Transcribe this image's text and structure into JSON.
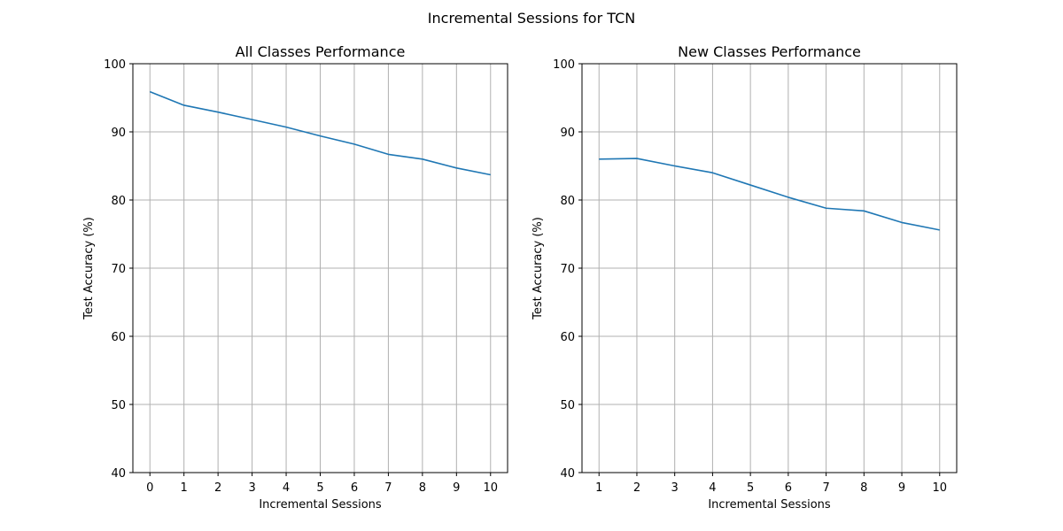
{
  "figure": {
    "suptitle": "Incremental Sessions for TCN"
  },
  "chart_data": [
    {
      "type": "line",
      "title": "All Classes Performance",
      "xlabel": "Incremental Sessions",
      "ylabel": "Test Accuracy (%)",
      "x": [
        0,
        1,
        2,
        3,
        4,
        5,
        6,
        7,
        8,
        9,
        10
      ],
      "series": [
        {
          "values": [
            95.9,
            93.9,
            92.9,
            91.8,
            90.7,
            89.4,
            88.2,
            86.7,
            86.0,
            84.7,
            83.7
          ],
          "color": "#1f77b4"
        }
      ],
      "xticks": [
        0,
        1,
        2,
        3,
        4,
        5,
        6,
        7,
        8,
        9,
        10
      ],
      "yticks": [
        40,
        50,
        60,
        70,
        80,
        90,
        100
      ],
      "xlim": [
        -0.5,
        10.5
      ],
      "ylim": [
        40,
        100
      ],
      "grid": true
    },
    {
      "type": "line",
      "title": "New Classes Performance",
      "xlabel": "Incremental Sessions",
      "ylabel": "Test Accuracy (%)",
      "x": [
        1,
        2,
        3,
        4,
        5,
        6,
        7,
        8,
        9,
        10
      ],
      "series": [
        {
          "values": [
            86.0,
            86.1,
            85.0,
            84.0,
            82.2,
            80.4,
            78.8,
            78.4,
            76.7,
            75.6
          ],
          "color": "#1f77b4"
        }
      ],
      "xticks": [
        1,
        2,
        3,
        4,
        5,
        6,
        7,
        8,
        9,
        10
      ],
      "yticks": [
        40,
        50,
        60,
        70,
        80,
        90,
        100
      ],
      "xlim": [
        0.55,
        10.45
      ],
      "ylim": [
        40,
        100
      ],
      "grid": true
    }
  ]
}
